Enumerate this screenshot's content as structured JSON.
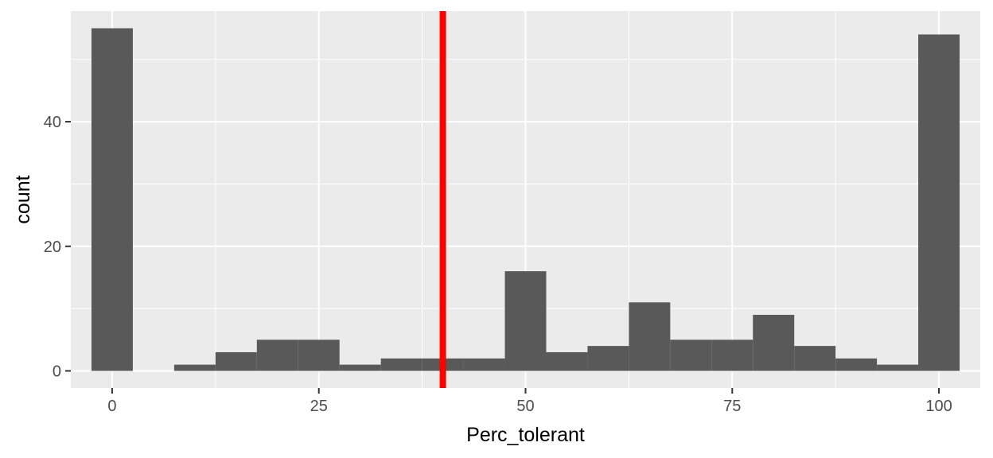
{
  "chart_data": {
    "type": "bar",
    "subtype": "histogram",
    "title": "",
    "xlabel": "Perc_tolerant",
    "ylabel": "count",
    "xlim": [
      -5,
      105
    ],
    "ylim": [
      -2.75,
      57.75
    ],
    "x_ticks": [
      0,
      25,
      50,
      75,
      100
    ],
    "x_tick_labels": [
      "0",
      "25",
      "50",
      "75",
      "100"
    ],
    "y_ticks": [
      0,
      20,
      40
    ],
    "y_tick_labels": [
      "0",
      "20",
      "40"
    ],
    "grid": true,
    "legend": "none",
    "bin_width": 5,
    "bins": [
      {
        "x": 0,
        "count": 55
      },
      {
        "x": 5,
        "count": 0
      },
      {
        "x": 10,
        "count": 1
      },
      {
        "x": 15,
        "count": 3
      },
      {
        "x": 20,
        "count": 5
      },
      {
        "x": 25,
        "count": 5
      },
      {
        "x": 30,
        "count": 1
      },
      {
        "x": 35,
        "count": 2
      },
      {
        "x": 40,
        "count": 2
      },
      {
        "x": 45,
        "count": 2
      },
      {
        "x": 50,
        "count": 16
      },
      {
        "x": 55,
        "count": 3
      },
      {
        "x": 60,
        "count": 4
      },
      {
        "x": 65,
        "count": 11
      },
      {
        "x": 70,
        "count": 5
      },
      {
        "x": 75,
        "count": 5
      },
      {
        "x": 80,
        "count": 9
      },
      {
        "x": 85,
        "count": 4
      },
      {
        "x": 90,
        "count": 2
      },
      {
        "x": 95,
        "count": 1
      },
      {
        "x": 100,
        "count": 54
      }
    ],
    "vline": {
      "x": 40,
      "color": "#ff0000"
    },
    "colors": {
      "bar": "#595959",
      "panel": "#ebebeb",
      "grid": "#ffffff"
    }
  }
}
